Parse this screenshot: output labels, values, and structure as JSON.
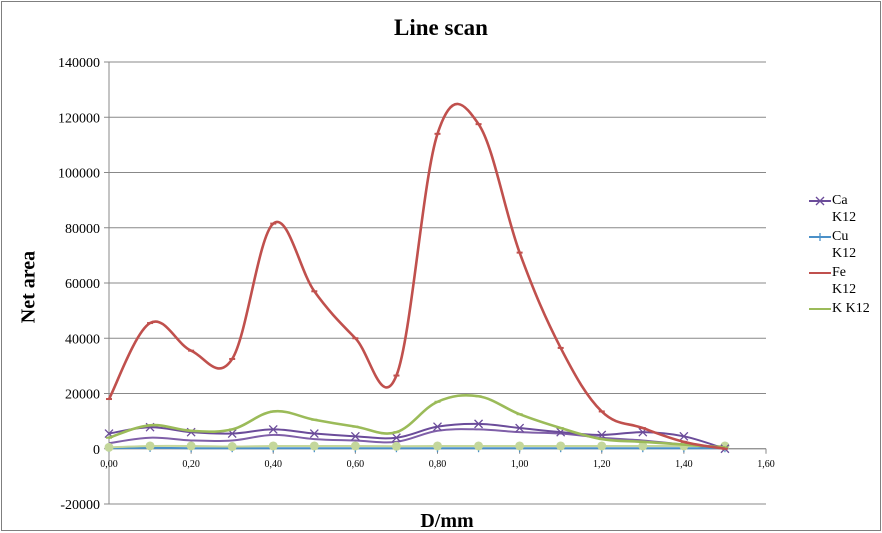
{
  "chart_data": {
    "type": "line",
    "title": "Line scan",
    "xlabel": "D/mm",
    "ylabel": "Net area",
    "xlim": [
      0,
      1.6
    ],
    "ylim": [
      -20000,
      140000
    ],
    "x_ticks": [
      "0,00",
      "0,20",
      "0,40",
      "0,60",
      "0,80",
      "1,00",
      "1,20",
      "1,40",
      "1,60"
    ],
    "y_ticks": [
      "-20000",
      "0",
      "20000",
      "40000",
      "60000",
      "80000",
      "100000",
      "120000",
      "140000"
    ],
    "grid": "horizontal",
    "legend_position": "right",
    "x": [
      0.0,
      0.1,
      0.2,
      0.3,
      0.4,
      0.5,
      0.6,
      0.7,
      0.8,
      0.9,
      1.0,
      1.1,
      1.2,
      1.3,
      1.4,
      1.5
    ],
    "series": [
      {
        "name": "Ca K12",
        "legend_lines": [
          "Ca",
          "K12"
        ],
        "color": "#6b4c9a",
        "marker": "x",
        "values": [
          5500,
          7800,
          6000,
          5500,
          7000,
          5500,
          4500,
          4000,
          8000,
          9000,
          7500,
          6000,
          5000,
          6000,
          4500,
          0
        ]
      },
      {
        "name": "Cu K12",
        "legend_lines": [
          "Cu",
          "K12"
        ],
        "color": "#4a90c8",
        "marker": "+",
        "values": [
          200,
          300,
          200,
          200,
          200,
          200,
          200,
          200,
          200,
          200,
          200,
          200,
          200,
          200,
          200,
          200
        ]
      },
      {
        "name": "Fe K12",
        "legend_lines": [
          "Fe",
          "K12"
        ],
        "color": "#c0504d",
        "marker": "-",
        "values": [
          18000,
          45500,
          35500,
          32500,
          81500,
          57000,
          40000,
          26500,
          114000,
          117500,
          71000,
          36500,
          13500,
          7500,
          2500,
          0
        ]
      },
      {
        "name": "K K12",
        "legend_lines": [
          "K K12"
        ],
        "color": "#9bbb59",
        "marker": "-",
        "values": [
          4000,
          8500,
          6500,
          7000,
          13500,
          10500,
          8000,
          6000,
          17000,
          19000,
          12500,
          7500,
          3500,
          2500,
          1500,
          500
        ]
      },
      {
        "name": "",
        "legend_lines": [],
        "color": "#7f5fa8",
        "marker": "line",
        "values": [
          2000,
          4000,
          3000,
          3000,
          5000,
          3500,
          3000,
          2500,
          6500,
          7000,
          6000,
          5500,
          4000,
          3000,
          1500,
          0
        ]
      },
      {
        "name": "",
        "legend_lines": [],
        "color": "#c4d79b",
        "marker": "o",
        "values": [
          500,
          1000,
          1000,
          800,
          1000,
          1000,
          1000,
          900,
          1000,
          1000,
          1000,
          1000,
          1000,
          1000,
          1000,
          1000
        ]
      }
    ]
  }
}
